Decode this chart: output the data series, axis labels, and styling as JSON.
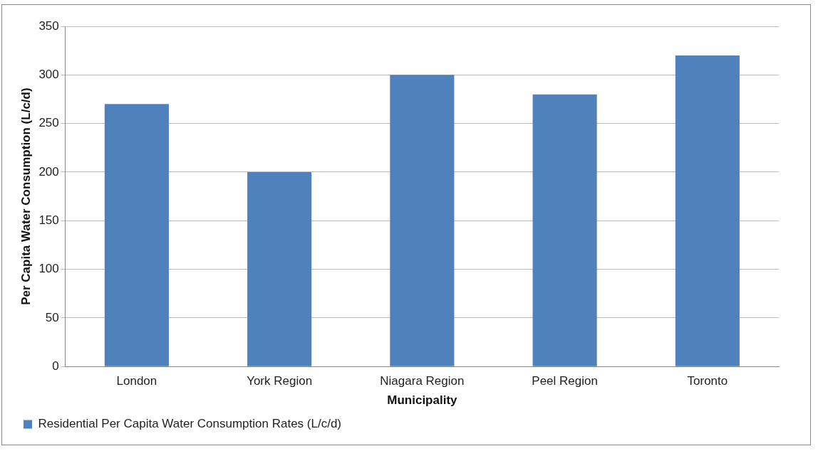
{
  "chart_data": {
    "type": "bar",
    "xlabel": "Municipality",
    "ylabel": "Per Capita Water Consumption (L/c/d)",
    "categories": [
      "London",
      "York Region",
      "Niagara Region",
      "Peel Region",
      "Toronto"
    ],
    "series": [
      {
        "name": "Residential Per Capita Water Consumption Rates (L/c/d)",
        "color": "#4f81bd",
        "values": [
          270,
          200,
          300,
          280,
          320
        ]
      }
    ],
    "ylim": [
      0,
      350
    ],
    "yticks": [
      0,
      50,
      100,
      150,
      200,
      250,
      300,
      350
    ],
    "grid": "y",
    "legend": "bottom left"
  }
}
